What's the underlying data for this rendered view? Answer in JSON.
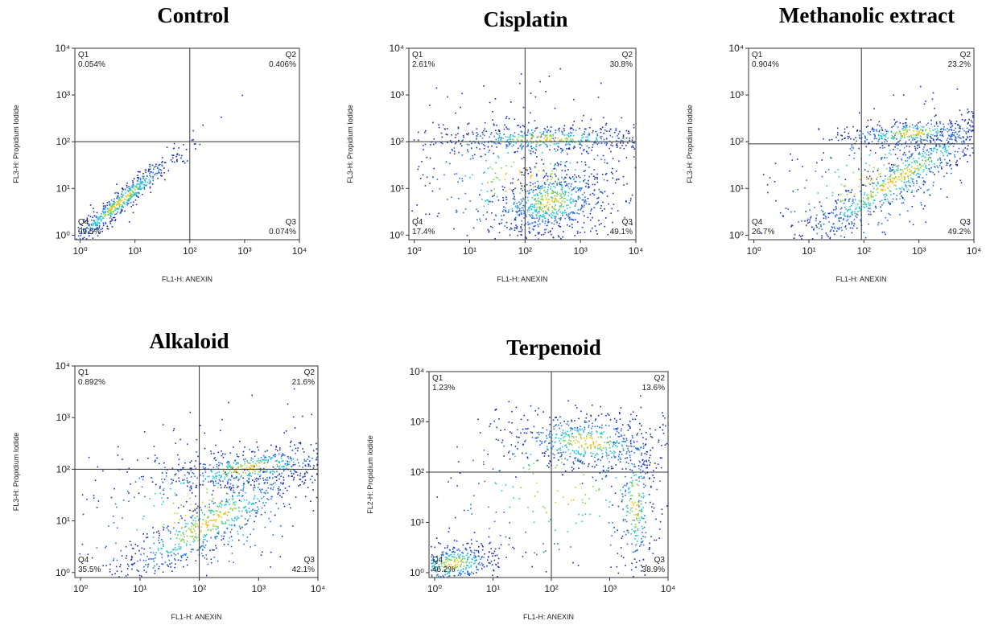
{
  "chart_data": [
    {
      "type": "scatter",
      "title": "Control",
      "x_label": "FL1-H: ANEXIN",
      "y_label": "FL3-H: Propidium Iodide",
      "log_x": true,
      "log_y": true,
      "xlim": [
        0.8,
        10000
      ],
      "ylim": [
        0.8,
        10000
      ],
      "xticks": [
        {
          "value": 1,
          "label": "10⁰"
        },
        {
          "value": 10,
          "label": "10¹"
        },
        {
          "value": 100,
          "label": "10²"
        },
        {
          "value": 1000,
          "label": "10³"
        },
        {
          "value": 10000,
          "label": "10⁴"
        }
      ],
      "yticks": [
        {
          "value": 1,
          "label": "10⁰"
        },
        {
          "value": 10,
          "label": "10¹"
        },
        {
          "value": 100,
          "label": "10²"
        },
        {
          "value": 1000,
          "label": "10³"
        },
        {
          "value": 10000,
          "label": "10⁴"
        }
      ],
      "gate_x": 100,
      "gate_y": 100,
      "quadrants": [
        "Q1",
        "Q2",
        "Q3",
        "Q4"
      ],
      "quadrant_percentages": [
        "0.054%",
        "0.406%",
        "0.074%",
        "99.5%"
      ]
    },
    {
      "type": "scatter",
      "title": "Cisplatin",
      "x_label": "FL1-H: ANEXIN",
      "y_label": "FL3-H: Propidium Iodide",
      "log_x": true,
      "log_y": true,
      "xlim": [
        0.8,
        10000
      ],
      "ylim": [
        0.8,
        10000
      ],
      "xticks": [
        {
          "value": 1,
          "label": "10⁰"
        },
        {
          "value": 10,
          "label": "10¹"
        },
        {
          "value": 100,
          "label": "10²"
        },
        {
          "value": 1000,
          "label": "10³"
        },
        {
          "value": 10000,
          "label": "10⁴"
        }
      ],
      "yticks": [
        {
          "value": 1,
          "label": "10⁰"
        },
        {
          "value": 10,
          "label": "10¹"
        },
        {
          "value": 100,
          "label": "10²"
        },
        {
          "value": 1000,
          "label": "10³"
        },
        {
          "value": 10000,
          "label": "10⁴"
        }
      ],
      "gate_x": 100,
      "gate_y": 100,
      "quadrants": [
        "Q1",
        "Q2",
        "Q3",
        "Q4"
      ],
      "quadrant_percentages": [
        "2.61%",
        "30.8%",
        "49.1%",
        "17.4%"
      ]
    },
    {
      "type": "scatter",
      "title": "Methanolic extract",
      "x_label": "FL1-H: ANEXIN",
      "y_label": "FL3-H: Propidium Iodide",
      "log_x": true,
      "log_y": true,
      "xlim": [
        0.8,
        10000
      ],
      "ylim": [
        0.8,
        10000
      ],
      "xticks": [
        {
          "value": 1,
          "label": "10⁰"
        },
        {
          "value": 10,
          "label": "10¹"
        },
        {
          "value": 100,
          "label": "10²"
        },
        {
          "value": 1000,
          "label": "10³"
        },
        {
          "value": 10000,
          "label": "10⁴"
        }
      ],
      "yticks": [
        {
          "value": 1,
          "label": "10⁰"
        },
        {
          "value": 10,
          "label": "10¹"
        },
        {
          "value": 100,
          "label": "10²"
        },
        {
          "value": 1000,
          "label": "10³"
        },
        {
          "value": 10000,
          "label": "10⁴"
        }
      ],
      "gate_x": 90,
      "gate_y": 90,
      "quadrants": [
        "Q1",
        "Q2",
        "Q3",
        "Q4"
      ],
      "quadrant_percentages": [
        "0.904%",
        "23.2%",
        "49.2%",
        "26.7%"
      ]
    },
    {
      "type": "scatter",
      "title": "Alkaloid",
      "x_label": "FL1-H: ANEXIN",
      "y_label": "FL3-H: Propidium Iodide",
      "log_x": true,
      "log_y": true,
      "xlim": [
        0.8,
        10000
      ],
      "ylim": [
        0.8,
        10000
      ],
      "xticks": [
        {
          "value": 1,
          "label": "10⁰"
        },
        {
          "value": 10,
          "label": "10¹"
        },
        {
          "value": 100,
          "label": "10²"
        },
        {
          "value": 1000,
          "label": "10³"
        },
        {
          "value": 10000,
          "label": "10⁴"
        }
      ],
      "yticks": [
        {
          "value": 1,
          "label": "10⁰"
        },
        {
          "value": 10,
          "label": "10¹"
        },
        {
          "value": 100,
          "label": "10²"
        },
        {
          "value": 1000,
          "label": "10³"
        },
        {
          "value": 10000,
          "label": "10⁴"
        }
      ],
      "gate_x": 100,
      "gate_y": 100,
      "quadrants": [
        "Q1",
        "Q2",
        "Q3",
        "Q4"
      ],
      "quadrant_percentages": [
        "0.892%",
        "21.6%",
        "42.1%",
        "35.5%"
      ]
    },
    {
      "type": "scatter",
      "title": "Terpenoid",
      "x_label": "FL1-H: ANEXIN",
      "y_label": "FL2-H: Propidium Iodide",
      "log_x": true,
      "log_y": true,
      "xlim": [
        0.8,
        10000
      ],
      "ylim": [
        0.8,
        10000
      ],
      "xticks": [
        {
          "value": 1,
          "label": "10⁰"
        },
        {
          "value": 10,
          "label": "10¹"
        },
        {
          "value": 100,
          "label": "10²"
        },
        {
          "value": 1000,
          "label": "10³"
        },
        {
          "value": 10000,
          "label": "10⁴"
        }
      ],
      "yticks": [
        {
          "value": 1,
          "label": "10⁰"
        },
        {
          "value": 10,
          "label": "10¹"
        },
        {
          "value": 100,
          "label": "10²"
        },
        {
          "value": 1000,
          "label": "10³"
        },
        {
          "value": 10000,
          "label": "10⁴"
        }
      ],
      "gate_x": 100,
      "gate_y": 100,
      "quadrants": [
        "Q1",
        "Q2",
        "Q3",
        "Q4"
      ],
      "quadrant_percentages": [
        "1.23%",
        "13.6%",
        "38.9%",
        "46.2%"
      ]
    }
  ]
}
